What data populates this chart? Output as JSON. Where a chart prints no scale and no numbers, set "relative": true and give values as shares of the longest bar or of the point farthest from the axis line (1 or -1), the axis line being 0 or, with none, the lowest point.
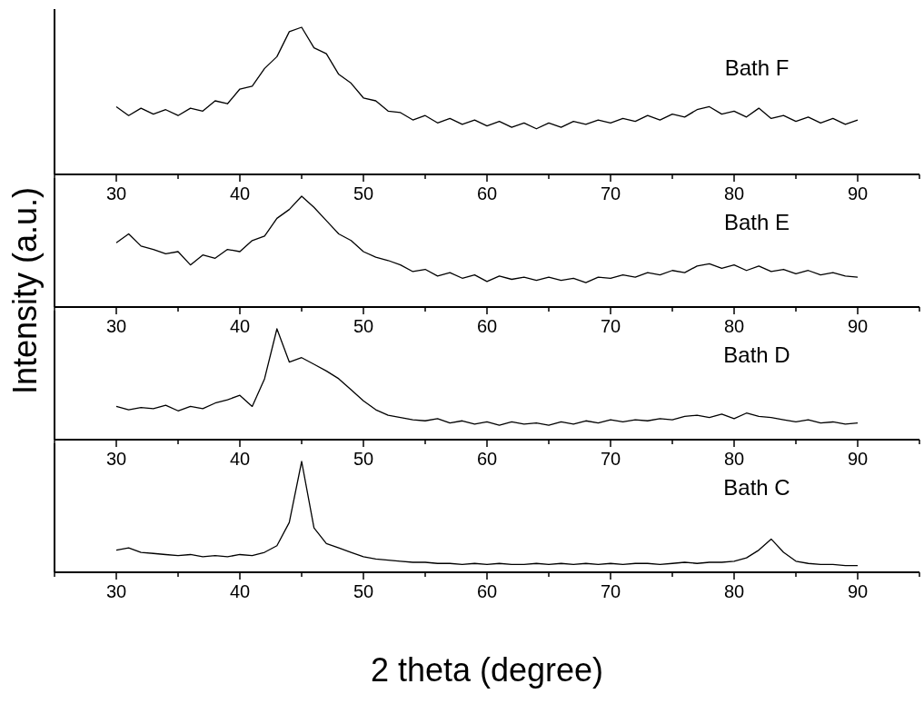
{
  "chart_data": [
    {
      "type": "line",
      "relative": true,
      "xlim": [
        25,
        95
      ],
      "xticks": [
        {
          "value": 25,
          "label": null
        },
        30,
        {
          "value": 35,
          "label": null
        },
        40,
        {
          "value": 45,
          "label": null
        },
        50,
        {
          "value": 55,
          "label": null
        },
        60,
        {
          "value": 65,
          "label": null
        },
        70,
        {
          "value": 75,
          "label": null
        },
        80,
        {
          "value": 85,
          "label": null
        },
        90,
        {
          "value": 95,
          "label": null
        }
      ],
      "x": [
        30,
        31,
        32,
        33,
        34,
        35,
        36,
        37,
        38,
        39,
        40,
        41,
        42,
        43,
        44,
        45,
        46,
        47,
        48,
        49,
        50,
        51,
        52,
        53,
        54,
        55,
        56,
        57,
        58,
        59,
        60,
        61,
        62,
        63,
        64,
        65,
        66,
        67,
        68,
        69,
        70,
        71,
        72,
        73,
        74,
        75,
        76,
        77,
        78,
        79,
        80,
        81,
        82,
        83,
        84,
        85,
        86,
        87,
        88,
        89,
        90
      ],
      "series": [
        {
          "name": "Bath F",
          "color": "#000000",
          "values": [
            0.46,
            0.4,
            0.45,
            0.41,
            0.44,
            0.4,
            0.45,
            0.43,
            0.5,
            0.48,
            0.58,
            0.6,
            0.72,
            0.8,
            0.97,
            1.0,
            0.86,
            0.82,
            0.68,
            0.62,
            0.52,
            0.5,
            0.43,
            0.42,
            0.37,
            0.4,
            0.35,
            0.38,
            0.34,
            0.37,
            0.33,
            0.36,
            0.32,
            0.35,
            0.31,
            0.35,
            0.32,
            0.36,
            0.34,
            0.37,
            0.35,
            0.38,
            0.36,
            0.4,
            0.37,
            0.41,
            0.39,
            0.44,
            0.46,
            0.41,
            0.43,
            0.39,
            0.45,
            0.38,
            0.4,
            0.36,
            0.39,
            0.35,
            0.38,
            0.34,
            0.37
          ]
        }
      ]
    },
    {
      "type": "line",
      "relative": true,
      "ylabel": "Intensity (a.u.)",
      "xlim": [
        25,
        95
      ],
      "xticks": [
        {
          "value": 25,
          "label": null
        },
        30,
        {
          "value": 35,
          "label": null
        },
        40,
        {
          "value": 45,
          "label": null
        },
        50,
        {
          "value": 55,
          "label": null
        },
        60,
        {
          "value": 65,
          "label": null
        },
        70,
        {
          "value": 75,
          "label": null
        },
        80,
        {
          "value": 85,
          "label": null
        },
        90,
        {
          "value": 95,
          "label": null
        }
      ],
      "x": [
        30,
        31,
        32,
        33,
        34,
        35,
        36,
        37,
        38,
        39,
        40,
        41,
        42,
        43,
        44,
        45,
        46,
        47,
        48,
        49,
        50,
        51,
        52,
        53,
        54,
        55,
        56,
        57,
        58,
        59,
        60,
        61,
        62,
        63,
        64,
        65,
        66,
        67,
        68,
        69,
        70,
        71,
        72,
        73,
        74,
        75,
        76,
        77,
        78,
        79,
        80,
        81,
        82,
        83,
        84,
        85,
        86,
        87,
        88,
        89,
        90
      ],
      "series": [
        {
          "name": "Bath E",
          "color": "#000000",
          "values": [
            0.58,
            0.66,
            0.55,
            0.52,
            0.48,
            0.5,
            0.38,
            0.47,
            0.44,
            0.52,
            0.5,
            0.6,
            0.64,
            0.8,
            0.88,
            1.0,
            0.9,
            0.78,
            0.66,
            0.6,
            0.5,
            0.45,
            0.42,
            0.38,
            0.32,
            0.34,
            0.28,
            0.31,
            0.26,
            0.29,
            0.23,
            0.28,
            0.25,
            0.27,
            0.24,
            0.27,
            0.24,
            0.26,
            0.22,
            0.27,
            0.26,
            0.29,
            0.27,
            0.31,
            0.29,
            0.33,
            0.31,
            0.37,
            0.39,
            0.35,
            0.38,
            0.33,
            0.37,
            0.32,
            0.34,
            0.3,
            0.33,
            0.29,
            0.31,
            0.28,
            0.27
          ]
        }
      ]
    },
    {
      "type": "line",
      "relative": true,
      "xlim": [
        25,
        95
      ],
      "xticks": [
        {
          "value": 25,
          "label": null
        },
        30,
        {
          "value": 35,
          "label": null
        },
        40,
        {
          "value": 45,
          "label": null
        },
        50,
        {
          "value": 55,
          "label": null
        },
        60,
        {
          "value": 65,
          "label": null
        },
        70,
        {
          "value": 75,
          "label": null
        },
        80,
        {
          "value": 85,
          "label": null
        },
        90,
        {
          "value": 95,
          "label": null
        }
      ],
      "x": [
        30,
        31,
        32,
        33,
        34,
        35,
        36,
        37,
        38,
        39,
        40,
        41,
        42,
        43,
        44,
        45,
        46,
        47,
        48,
        49,
        50,
        51,
        52,
        53,
        54,
        55,
        56,
        57,
        58,
        59,
        60,
        61,
        62,
        63,
        64,
        65,
        66,
        67,
        68,
        69,
        70,
        71,
        72,
        73,
        74,
        75,
        76,
        77,
        78,
        79,
        80,
        81,
        82,
        83,
        84,
        85,
        86,
        87,
        88,
        89,
        90
      ],
      "series": [
        {
          "name": "Bath D",
          "color": "#000000",
          "values": [
            0.3,
            0.27,
            0.29,
            0.28,
            0.31,
            0.26,
            0.3,
            0.28,
            0.33,
            0.36,
            0.4,
            0.3,
            0.55,
            1.0,
            0.7,
            0.74,
            0.68,
            0.62,
            0.55,
            0.45,
            0.35,
            0.27,
            0.22,
            0.2,
            0.18,
            0.17,
            0.19,
            0.15,
            0.17,
            0.14,
            0.16,
            0.13,
            0.16,
            0.14,
            0.15,
            0.13,
            0.16,
            0.14,
            0.17,
            0.15,
            0.18,
            0.16,
            0.18,
            0.17,
            0.19,
            0.18,
            0.21,
            0.22,
            0.2,
            0.23,
            0.19,
            0.24,
            0.21,
            0.2,
            0.18,
            0.16,
            0.18,
            0.15,
            0.16,
            0.14,
            0.15
          ]
        }
      ]
    },
    {
      "type": "line",
      "relative": true,
      "xlabel": "2 theta (degree)",
      "xlim": [
        25,
        95
      ],
      "xticks": [
        {
          "value": 25,
          "label": null
        },
        30,
        {
          "value": 35,
          "label": null
        },
        40,
        {
          "value": 45,
          "label": null
        },
        50,
        {
          "value": 55,
          "label": null
        },
        60,
        {
          "value": 65,
          "label": null
        },
        70,
        {
          "value": 75,
          "label": null
        },
        80,
        {
          "value": 85,
          "label": null
        },
        90,
        {
          "value": 95,
          "label": null
        }
      ],
      "x": [
        30,
        31,
        32,
        33,
        34,
        35,
        36,
        37,
        38,
        39,
        40,
        41,
        42,
        43,
        44,
        45,
        46,
        47,
        48,
        49,
        50,
        51,
        52,
        53,
        54,
        55,
        56,
        57,
        58,
        59,
        60,
        61,
        62,
        63,
        64,
        65,
        66,
        67,
        68,
        69,
        70,
        71,
        72,
        73,
        74,
        75,
        76,
        77,
        78,
        79,
        80,
        81,
        82,
        83,
        84,
        85,
        86,
        87,
        88,
        89,
        90
      ],
      "series": [
        {
          "name": "Bath C",
          "color": "#000000",
          "values": [
            0.2,
            0.22,
            0.18,
            0.17,
            0.16,
            0.15,
            0.16,
            0.14,
            0.15,
            0.14,
            0.16,
            0.15,
            0.18,
            0.24,
            0.45,
            1.0,
            0.4,
            0.26,
            0.22,
            0.18,
            0.14,
            0.12,
            0.11,
            0.1,
            0.09,
            0.09,
            0.08,
            0.08,
            0.07,
            0.08,
            0.07,
            0.08,
            0.07,
            0.07,
            0.08,
            0.07,
            0.08,
            0.07,
            0.08,
            0.07,
            0.08,
            0.07,
            0.08,
            0.08,
            0.07,
            0.08,
            0.09,
            0.08,
            0.09,
            0.09,
            0.1,
            0.13,
            0.2,
            0.3,
            0.18,
            0.1,
            0.08,
            0.07,
            0.07,
            0.06,
            0.06
          ]
        }
      ]
    }
  ]
}
